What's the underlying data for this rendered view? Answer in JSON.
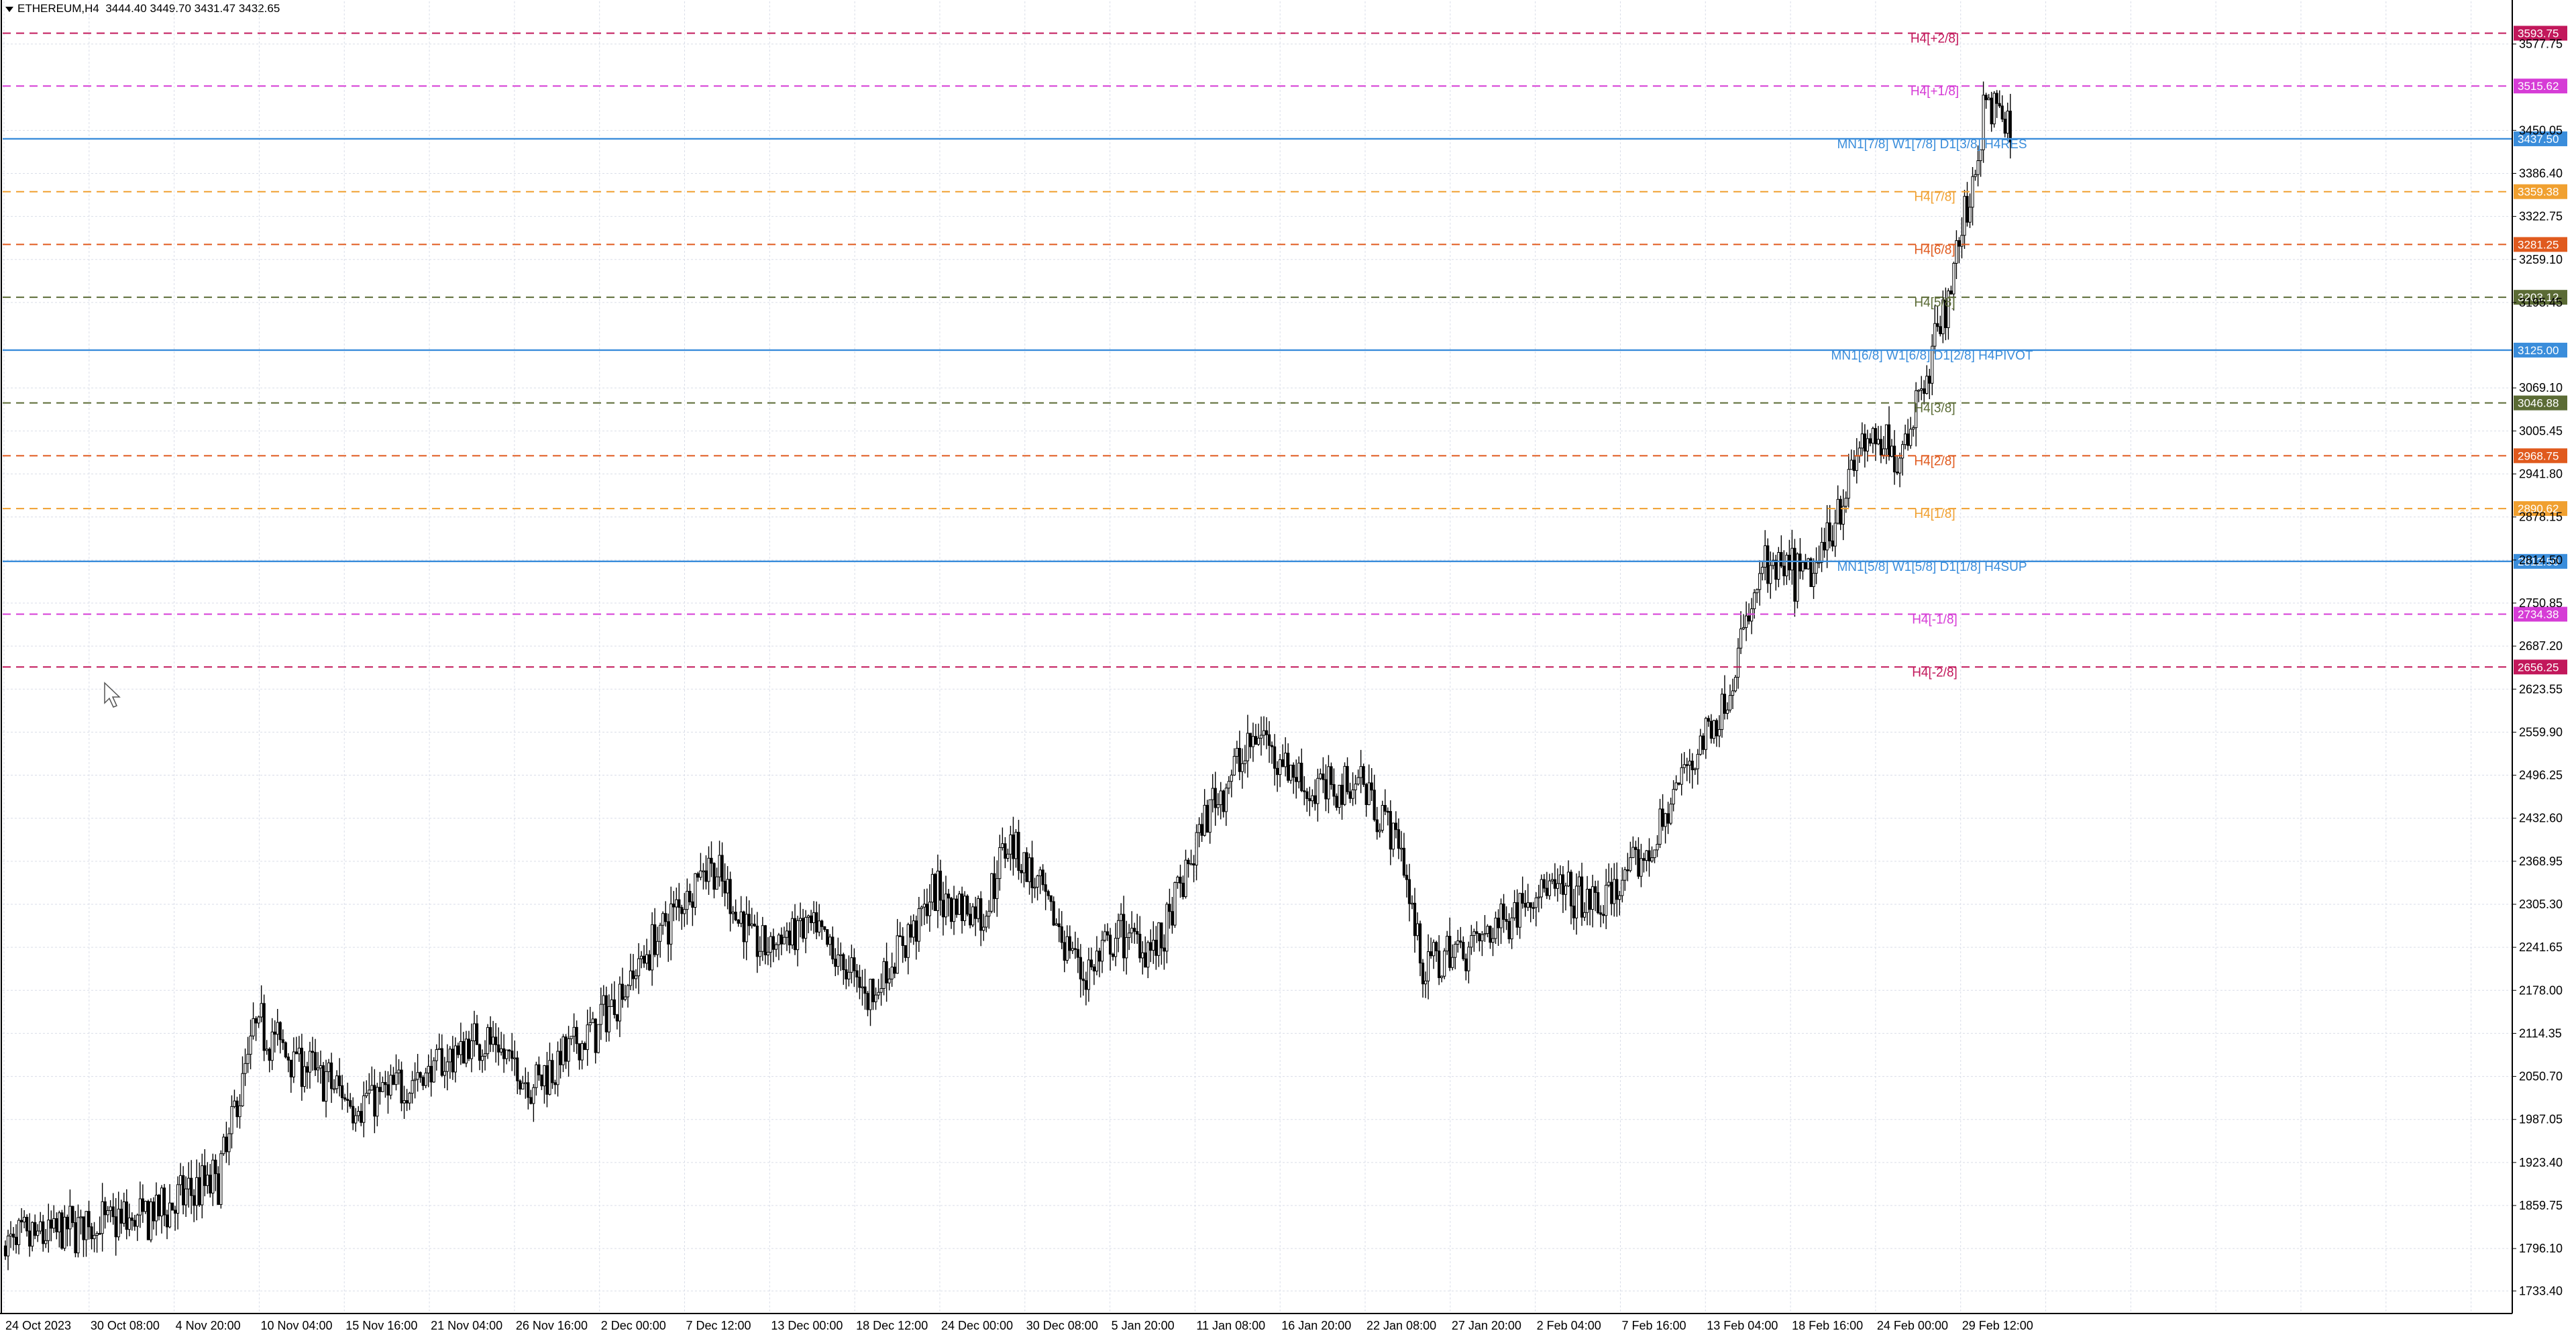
{
  "header": {
    "symbol": "ETHEREUM,H4",
    "ohlc": "3444.40 3449.70 3431.47 3432.65"
  },
  "colors": {
    "background": "#ffffff",
    "grid": "#d9dde8",
    "candle": "#000000",
    "frame": "#000000"
  },
  "chart_data": {
    "type": "candlestick",
    "symbol": "ETHEREUM",
    "timeframe": "H4",
    "grid": true,
    "y_axis": {
      "position": "right",
      "range": [
        1700,
        3625
      ],
      "tick_labels": [
        "3577.75",
        "3450.05",
        "3386.40",
        "3322.75",
        "3259.10",
        "3195.45",
        "3069.10",
        "3005.45",
        "2941.80",
        "2878.15",
        "2814.50",
        "2750.85",
        "2687.20",
        "2623.55",
        "2559.90",
        "2496.25",
        "2432.60",
        "2368.95",
        "2305.30",
        "2241.65",
        "2178.00",
        "2114.35",
        "2050.70",
        "1987.05",
        "1923.40",
        "1859.75",
        "1796.10",
        "1733.40"
      ]
    },
    "x_axis": {
      "tick_labels": [
        "24 Oct 2023",
        "30 Oct 08:00",
        "4 Nov 20:00",
        "10 Nov 04:00",
        "15 Nov 16:00",
        "21 Nov 04:00",
        "26 Nov 16:00",
        "2 Dec 00:00",
        "7 Dec 12:00",
        "13 Dec 00:00",
        "18 Dec 12:00",
        "24 Dec 00:00",
        "30 Dec 08:00",
        "5 Jan 20:00",
        "11 Jan 08:00",
        "16 Jan 20:00",
        "22 Jan 08:00",
        "27 Jan 20:00",
        "2 Feb 04:00",
        "7 Feb 16:00",
        "13 Feb 04:00",
        "18 Feb 16:00",
        "24 Feb 00:00",
        "29 Feb 12:00"
      ]
    },
    "close_path": [
      {
        "t": 0,
        "p": 1800
      },
      {
        "t": 0.03,
        "p": 1830
      },
      {
        "t": 0.055,
        "p": 1840
      },
      {
        "t": 0.07,
        "p": 1870
      },
      {
        "t": 0.085,
        "p": 1900
      },
      {
        "t": 0.1,
        "p": 2130
      },
      {
        "t": 0.115,
        "p": 2080
      },
      {
        "t": 0.14,
        "p": 2010
      },
      {
        "t": 0.155,
        "p": 2030
      },
      {
        "t": 0.17,
        "p": 2060
      },
      {
        "t": 0.19,
        "p": 2110
      },
      {
        "t": 0.21,
        "p": 2040
      },
      {
        "t": 0.235,
        "p": 2120
      },
      {
        "t": 0.255,
        "p": 2230
      },
      {
        "t": 0.28,
        "p": 2370
      },
      {
        "t": 0.3,
        "p": 2240
      },
      {
        "t": 0.32,
        "p": 2270
      },
      {
        "t": 0.345,
        "p": 2170
      },
      {
        "t": 0.37,
        "p": 2320
      },
      {
        "t": 0.39,
        "p": 2290
      },
      {
        "t": 0.4,
        "p": 2410
      },
      {
        "t": 0.415,
        "p": 2300
      },
      {
        "t": 0.43,
        "p": 2200
      },
      {
        "t": 0.445,
        "p": 2260
      },
      {
        "t": 0.46,
        "p": 2240
      },
      {
        "t": 0.48,
        "p": 2450
      },
      {
        "t": 0.5,
        "p": 2560
      },
      {
        "t": 0.52,
        "p": 2470
      },
      {
        "t": 0.54,
        "p": 2490
      },
      {
        "t": 0.555,
        "p": 2400
      },
      {
        "t": 0.565,
        "p": 2210
      },
      {
        "t": 0.59,
        "p": 2260
      },
      {
        "t": 0.61,
        "p": 2330
      },
      {
        "t": 0.635,
        "p": 2300
      },
      {
        "t": 0.655,
        "p": 2380
      },
      {
        "t": 0.67,
        "p": 2510
      },
      {
        "t": 0.685,
        "p": 2600
      },
      {
        "t": 0.7,
        "p": 2800
      },
      {
        "t": 0.72,
        "p": 2790
      },
      {
        "t": 0.74,
        "p": 2990
      },
      {
        "t": 0.755,
        "p": 2970
      },
      {
        "t": 0.77,
        "p": 3150
      },
      {
        "t": 0.78,
        "p": 3300
      },
      {
        "t": 0.79,
        "p": 3500
      },
      {
        "t": 0.8,
        "p": 3445
      }
    ],
    "levels": [
      {
        "price": 3593.75,
        "price_label": "3593.75",
        "color": "#c2185b",
        "dash": true,
        "label": "H4[+2/8]"
      },
      {
        "price": 3515.62,
        "price_label": "3515.62",
        "color": "#d63cd6",
        "dash": true,
        "label": "H4[+1/8]"
      },
      {
        "price": 3437.5,
        "price_label": "3437.50",
        "color": "#3a8ddb",
        "dash": false,
        "label": "MN1[7/8] W1[7/8] D1[3/8] H4RES"
      },
      {
        "price": 3359.38,
        "price_label": "3359.38",
        "color": "#f0a030",
        "dash": true,
        "label": "H4[7/8]"
      },
      {
        "price": 3281.25,
        "price_label": "3281.25",
        "color": "#e05a1e",
        "dash": true,
        "label": "H4[6/8]"
      },
      {
        "price": 3203.12,
        "price_label": "3203.12",
        "color": "#5b6b35",
        "dash": true,
        "label": "H4[5/8]"
      },
      {
        "price": 3125.0,
        "price_label": "3125.00",
        "color": "#3a8ddb",
        "dash": false,
        "label": "MN1[6/8] W1[6/8] D1[2/8] H4PIVOT"
      },
      {
        "price": 3046.88,
        "price_label": "3046.88",
        "color": "#5b6b35",
        "dash": true,
        "label": "H4[3/8]"
      },
      {
        "price": 2968.75,
        "price_label": "2968.75",
        "color": "#e05a1e",
        "dash": true,
        "label": "H4[2/8]"
      },
      {
        "price": 2890.62,
        "price_label": "2890.62",
        "color": "#f0a030",
        "dash": true,
        "label": "H4[1/8]"
      },
      {
        "price": 2812.5,
        "price_label": "2812.50",
        "color": "#3a8ddb",
        "dash": false,
        "label": "MN1[5/8] W1[5/8] D1[1/8] H4SUP"
      },
      {
        "price": 2734.38,
        "price_label": "2734.38",
        "color": "#d63cd6",
        "dash": true,
        "label": "H4[-1/8]"
      },
      {
        "price": 2656.25,
        "price_label": "2656.25",
        "color": "#c2185b",
        "dash": true,
        "label": "H4[-2/8]"
      }
    ],
    "current_price": 3432.65
  }
}
